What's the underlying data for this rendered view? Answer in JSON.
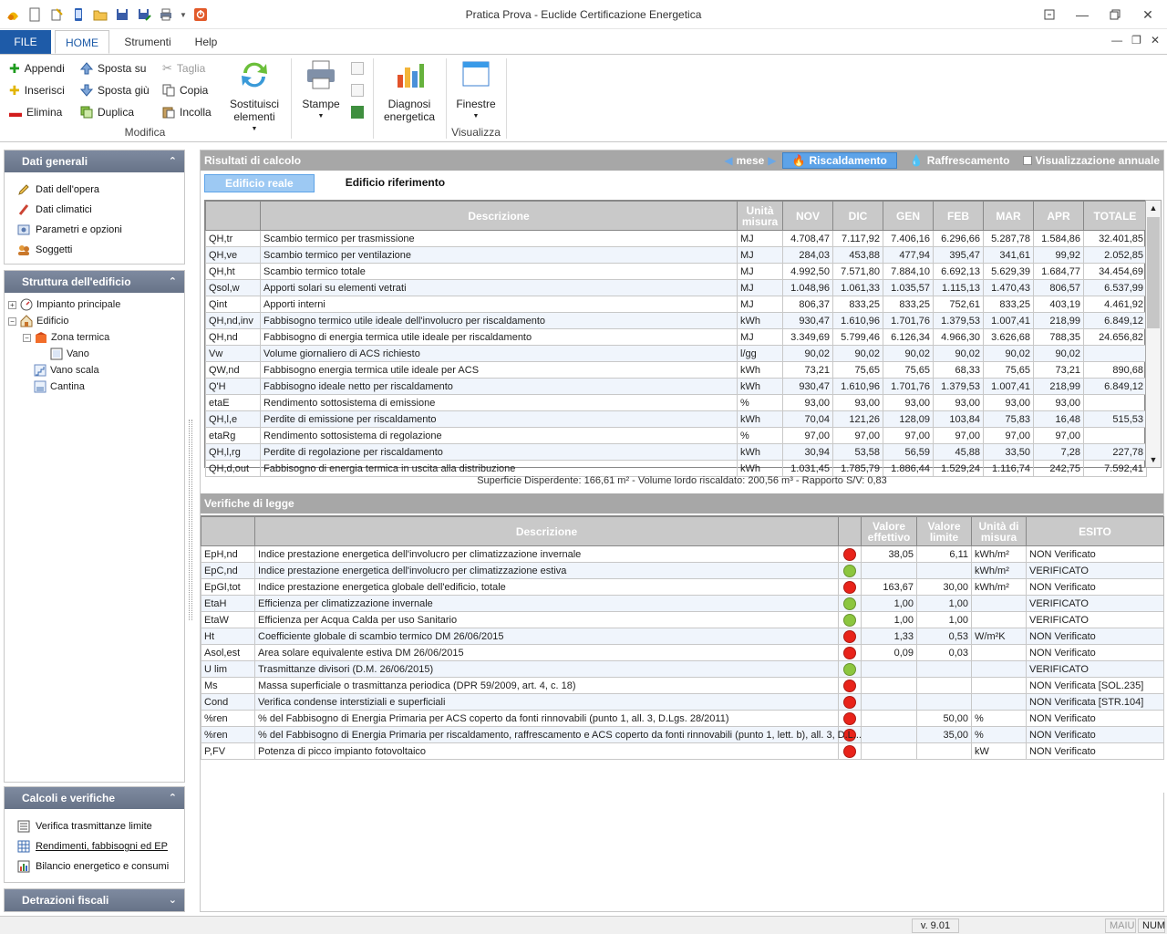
{
  "window": {
    "title": "Pratica Prova - Euclide Certificazione Energetica"
  },
  "ribbon": {
    "tabs": {
      "file": "FILE",
      "home": "HOME",
      "strumenti": "Strumenti",
      "help": "Help"
    },
    "modifica": {
      "label": "Modifica",
      "appendi": "Appendi",
      "inserisci": "Inserisci",
      "elimina": "Elimina",
      "sposta_su": "Sposta su",
      "sposta_giu": "Sposta giù",
      "duplica": "Duplica",
      "taglia": "Taglia",
      "copia": "Copia",
      "incolla": "Incolla",
      "sostituisci_1": "Sostituisci",
      "sostituisci_2": "elementi"
    },
    "stampe": "Stampe",
    "diagnosi_1": "Diagnosi",
    "diagnosi_2": "energetica",
    "finestre": "Finestre",
    "visualizza": "Visualizza"
  },
  "sidebar": {
    "dati_generali": {
      "header": "Dati generali",
      "items": [
        "Dati dell'opera",
        "Dati climatici",
        "Parametri e opzioni",
        "Soggetti"
      ]
    },
    "struttura": {
      "header": "Struttura dell'edificio",
      "impianto": "Impianto principale",
      "edificio": "Edificio",
      "zona": "Zona termica",
      "vano": "Vano",
      "vano_scala": "Vano scala",
      "cantina": "Cantina"
    },
    "calcoli": {
      "header": "Calcoli e verifiche",
      "items": [
        "Verifica trasmittanze limite",
        "Rendimenti, fabbisogni ed EP",
        "Bilancio energetico e consumi"
      ]
    },
    "detrazioni": {
      "header": "Detrazioni fiscali"
    }
  },
  "results": {
    "header": "Risultati di calcolo",
    "mese": "mese",
    "riscaldamento": "Riscaldamento",
    "raffrescamento": "Raffrescamento",
    "annuale": "Visualizzazione annuale",
    "subtab_reale": "Edificio reale",
    "subtab_rif": "Edificio riferimento",
    "columns": [
      "",
      "Descrizione",
      "Unità misura",
      "NOV",
      "DIC",
      "GEN",
      "FEB",
      "MAR",
      "APR",
      "TOTALE"
    ],
    "rows": [
      [
        "QH,tr",
        "Scambio termico per trasmissione",
        "MJ",
        "4.708,47",
        "7.117,92",
        "7.406,16",
        "6.296,66",
        "5.287,78",
        "1.584,86",
        "32.401,85"
      ],
      [
        "QH,ve",
        "Scambio termico per ventilazione",
        "MJ",
        "284,03",
        "453,88",
        "477,94",
        "395,47",
        "341,61",
        "99,92",
        "2.052,85"
      ],
      [
        "QH,ht",
        "Scambio termico totale",
        "MJ",
        "4.992,50",
        "7.571,80",
        "7.884,10",
        "6.692,13",
        "5.629,39",
        "1.684,77",
        "34.454,69"
      ],
      [
        "Qsol,w",
        "Apporti solari su elementi vetrati",
        "MJ",
        "1.048,96",
        "1.061,33",
        "1.035,57",
        "1.115,13",
        "1.470,43",
        "806,57",
        "6.537,99"
      ],
      [
        "Qint",
        "Apporti interni",
        "MJ",
        "806,37",
        "833,25",
        "833,25",
        "752,61",
        "833,25",
        "403,19",
        "4.461,92"
      ],
      [
        "QH,nd,inv",
        "Fabbisogno termico utile ideale dell'involucro per riscaldamento",
        "kWh",
        "930,47",
        "1.610,96",
        "1.701,76",
        "1.379,53",
        "1.007,41",
        "218,99",
        "6.849,12"
      ],
      [
        "QH,nd",
        "Fabbisogno di energia termica utile ideale per riscaldamento",
        "MJ",
        "3.349,69",
        "5.799,46",
        "6.126,34",
        "4.966,30",
        "3.626,68",
        "788,35",
        "24.656,82"
      ],
      [
        "Vw",
        "Volume giornaliero di ACS richiesto",
        "l/gg",
        "90,02",
        "90,02",
        "90,02",
        "90,02",
        "90,02",
        "90,02",
        ""
      ],
      [
        "QW,nd",
        "Fabbisogno energia termica utile ideale per ACS",
        "kWh",
        "73,21",
        "75,65",
        "75,65",
        "68,33",
        "75,65",
        "73,21",
        "890,68"
      ],
      [
        "Q'H",
        "Fabbisogno ideale netto per riscaldamento",
        "kWh",
        "930,47",
        "1.610,96",
        "1.701,76",
        "1.379,53",
        "1.007,41",
        "218,99",
        "6.849,12"
      ],
      [
        "etaE",
        "Rendimento sottosistema di emissione",
        "%",
        "93,00",
        "93,00",
        "93,00",
        "93,00",
        "93,00",
        "93,00",
        ""
      ],
      [
        "QH,l,e",
        "Perdite di emissione per riscaldamento",
        "kWh",
        "70,04",
        "121,26",
        "128,09",
        "103,84",
        "75,83",
        "16,48",
        "515,53"
      ],
      [
        "etaRg",
        "Rendimento sottosistema di regolazione",
        "%",
        "97,00",
        "97,00",
        "97,00",
        "97,00",
        "97,00",
        "97,00",
        ""
      ],
      [
        "QH,l,rg",
        "Perdite di regolazione per riscaldamento",
        "kWh",
        "30,94",
        "53,58",
        "56,59",
        "45,88",
        "33,50",
        "7,28",
        "227,78"
      ],
      [
        "QH,d,out",
        "Fabbisogno di energia termica in uscita alla distribuzione",
        "kWh",
        "1.031,45",
        "1.785,79",
        "1.886,44",
        "1.529,24",
        "1.116,74",
        "242,75",
        "7.592,41"
      ]
    ],
    "summary": "Superficie Disperdente: 166,61 m² - Volume lordo riscaldato: 200,56 m³ - Rapporto S/V: 0,83"
  },
  "verifiche": {
    "header": "Verifiche di legge",
    "columns": [
      "",
      "Descrizione",
      "",
      "Valore effettivo",
      "Valore limite",
      "Unità di misura",
      "ESITO"
    ],
    "colors": {
      "red": "#e8231a",
      "green": "#8cc63f"
    },
    "rows": [
      {
        "code": "EpH,nd",
        "desc": "Indice prestazione energetica dell'involucro per climatizzazione invernale",
        "status": "red",
        "val": "38,05",
        "lim": "6,11",
        "unit": "kWh/m²",
        "esito": "NON Verificato"
      },
      {
        "code": "EpC,nd",
        "desc": "Indice prestazione energetica dell'involucro per climatizzazione estiva",
        "status": "green",
        "val": "",
        "lim": "",
        "unit": "kWh/m²",
        "esito": "VERIFICATO"
      },
      {
        "code": "EpGl,tot",
        "desc": "Indice prestazione energetica globale dell'edificio, totale",
        "status": "red",
        "val": "163,67",
        "lim": "30,00",
        "unit": "kWh/m²",
        "esito": "NON Verificato"
      },
      {
        "code": "EtaH",
        "desc": "Efficienza per climatizzazione invernale",
        "status": "green",
        "val": "1,00",
        "lim": "1,00",
        "unit": "",
        "esito": "VERIFICATO"
      },
      {
        "code": "EtaW",
        "desc": "Efficienza per Acqua Calda per uso Sanitario",
        "status": "green",
        "val": "1,00",
        "lim": "1,00",
        "unit": "",
        "esito": "VERIFICATO"
      },
      {
        "code": "Ht",
        "desc": "Coefficiente globale di scambio termico DM 26/06/2015",
        "status": "red",
        "val": "1,33",
        "lim": "0,53",
        "unit": "W/m²K",
        "esito": "NON Verificato"
      },
      {
        "code": "Asol,est",
        "desc": "Area solare equivalente estiva DM 26/06/2015",
        "status": "red",
        "val": "0,09",
        "lim": "0,03",
        "unit": "",
        "esito": "NON Verificato"
      },
      {
        "code": "U lim",
        "desc": "Trasmittanze divisori (D.M. 26/06/2015)",
        "status": "green",
        "val": "",
        "lim": "",
        "unit": "",
        "esito": "VERIFICATO"
      },
      {
        "code": "Ms",
        "desc": "Massa superficiale o trasmittanza periodica (DPR 59/2009, art. 4, c. 18)",
        "status": "red",
        "val": "",
        "lim": "",
        "unit": "",
        "esito": "NON Verificata [SOL.235]"
      },
      {
        "code": "Cond",
        "desc": "Verifica condense interstiziali e superficiali",
        "status": "red",
        "val": "",
        "lim": "",
        "unit": "",
        "esito": "NON Verificata [STR.104]"
      },
      {
        "code": "%ren",
        "desc": "% del Fabbisogno di Energia Primaria per ACS coperto da fonti rinnovabili (punto 1, all. 3, D.Lgs. 28/2011)",
        "status": "red",
        "val": "",
        "lim": "50,00",
        "unit": "%",
        "esito": "NON Verificato"
      },
      {
        "code": "%ren",
        "desc": "% del Fabbisogno di Energia Primaria per riscaldamento, raffrescamento e ACS coperto da fonti rinnovabili (punto 1, lett. b), all. 3, D.L...",
        "status": "red",
        "val": "",
        "lim": "35,00",
        "unit": "%",
        "esito": "NON Verificato"
      },
      {
        "code": "P,FV",
        "desc": "Potenza di picco impianto fotovoltaico",
        "status": "red",
        "val": "",
        "lim": "",
        "unit": "kW",
        "esito": "NON Verificato"
      }
    ]
  },
  "statusbar": {
    "version": "v. 9.01",
    "maiu": "MAIU",
    "num": "NUM"
  }
}
